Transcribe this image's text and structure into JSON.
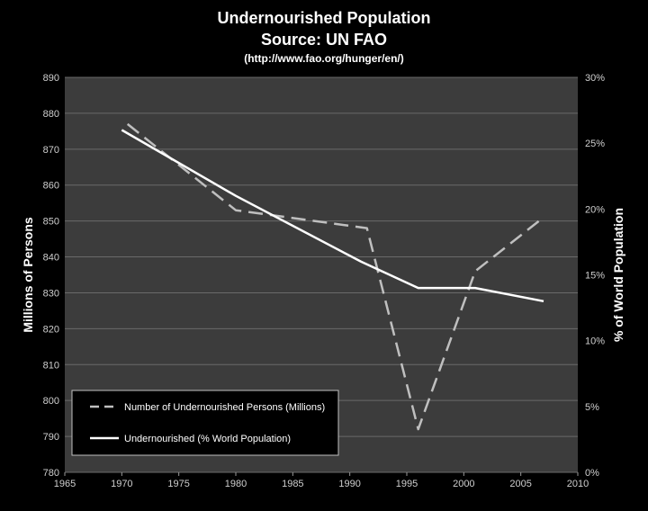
{
  "title": {
    "line1": "Undernourished Population",
    "line2": "Source: UN FAO",
    "line3": "(http://www.fao.org/hunger/en/)"
  },
  "chart_data": {
    "type": "line",
    "xlabel": "",
    "ylabel_left": "Millions of Persons",
    "ylabel_right": "% of World Population",
    "xlim": [
      1965,
      2010
    ],
    "xticks": [
      1965,
      1970,
      1975,
      1980,
      1985,
      1990,
      1995,
      2000,
      2005,
      2010
    ],
    "ylim_left": [
      780,
      890
    ],
    "yticks_left": [
      780,
      790,
      800,
      810,
      820,
      830,
      840,
      850,
      860,
      870,
      880,
      890
    ],
    "ylim_right": [
      0,
      30
    ],
    "yticks_right": [
      "0%",
      "5%",
      "10%",
      "15%",
      "20%",
      "25%",
      "30%"
    ],
    "legend_position": "bottom-left",
    "series": [
      {
        "name": "Number of Undernourished Persons (Millions)",
        "axis": "left",
        "style": "dashed",
        "color": "#bfbfbf",
        "x": [
          1970.5,
          1980,
          1991.5,
          1996,
          2001,
          2007
        ],
        "y": [
          877,
          853,
          848,
          792,
          836,
          851
        ]
      },
      {
        "name": "Undernourished (% World Population)",
        "axis": "right",
        "style": "solid",
        "color": "#ffffff",
        "x": [
          1970,
          1980,
          1991,
          1996,
          2001,
          2007
        ],
        "y": [
          26,
          21,
          16,
          14,
          14,
          13
        ]
      }
    ]
  }
}
